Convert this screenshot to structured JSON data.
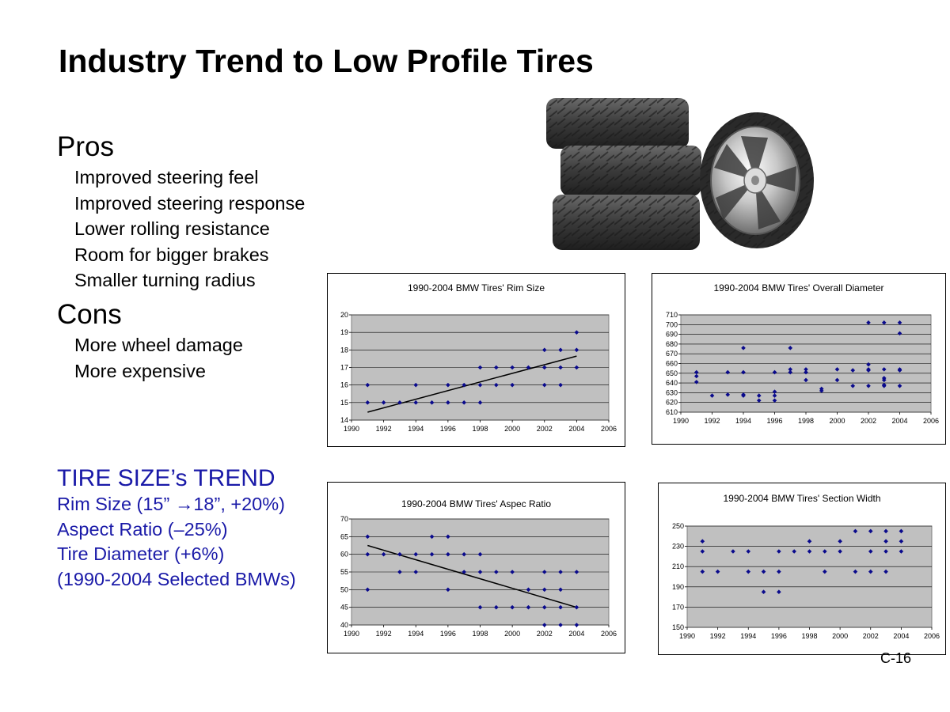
{
  "slide": {
    "title": "Industry Trend to Low Profile Tires",
    "pros_heading": "Pros",
    "pros": [
      "Improved steering feel",
      "Improved steering response",
      "Lower rolling resistance",
      "Room for bigger brakes",
      "Smaller turning radius"
    ],
    "cons_heading": "Cons",
    "cons": [
      "More wheel damage",
      "More expensive"
    ],
    "trend_heading": "TIRE SIZE’s TREND",
    "trend_lines": [
      "Rim Size (15” →18”, +20%)",
      "Aspect Ratio (–25%)",
      "Tire Diameter (+6%)",
      "(1990-2004 Selected BMWs)"
    ],
    "page_number": "C-16"
  },
  "image": {
    "icon": "tires-and-chrome-wheel-photo"
  },
  "colors": {
    "marker": "#0a0a8c",
    "plot_bg": "#c0c0c0",
    "trend_text": "#1a1aa8"
  },
  "chart_data": [
    {
      "type": "scatter",
      "title": "1990-2004 BMW Tires' Rim Size",
      "xlim": [
        1990,
        2006
      ],
      "ylim": [
        14,
        20
      ],
      "xticks": [
        1990,
        1992,
        1994,
        1996,
        1998,
        2000,
        2002,
        2004,
        2006
      ],
      "yticks": [
        14,
        15,
        16,
        17,
        18,
        19,
        20
      ],
      "grid": true,
      "legend": "none",
      "points": [
        [
          1991,
          16
        ],
        [
          1991,
          15
        ],
        [
          1992,
          15
        ],
        [
          1993,
          15
        ],
        [
          1994,
          16
        ],
        [
          1994,
          15
        ],
        [
          1995,
          15
        ],
        [
          1996,
          16
        ],
        [
          1996,
          15
        ],
        [
          1997,
          16
        ],
        [
          1997,
          15
        ],
        [
          1998,
          17
        ],
        [
          1998,
          16
        ],
        [
          1998,
          15
        ],
        [
          1999,
          17
        ],
        [
          1999,
          16
        ],
        [
          2000,
          17
        ],
        [
          2000,
          16
        ],
        [
          2001,
          17
        ],
        [
          2002,
          18
        ],
        [
          2002,
          17
        ],
        [
          2002,
          16
        ],
        [
          2003,
          18
        ],
        [
          2003,
          17
        ],
        [
          2003,
          16
        ],
        [
          2004,
          19
        ],
        [
          2004,
          18
        ],
        [
          2004,
          17
        ]
      ],
      "trendline": [
        [
          1991,
          14.45
        ],
        [
          2004,
          17.65
        ]
      ]
    },
    {
      "type": "scatter",
      "title": "1990-2004 BMW Tires' Overall Diameter",
      "xlim": [
        1990,
        2006
      ],
      "ylim": [
        610,
        710
      ],
      "xticks": [
        1990,
        1992,
        1994,
        1996,
        1998,
        2000,
        2002,
        2004,
        2006
      ],
      "yticks": [
        610,
        620,
        630,
        640,
        650,
        660,
        670,
        680,
        690,
        700,
        710
      ],
      "grid": true,
      "legend": "none",
      "points": [
        [
          1991,
          651
        ],
        [
          1991,
          647
        ],
        [
          1991,
          641
        ],
        [
          1992,
          627
        ],
        [
          1993,
          651
        ],
        [
          1993,
          628
        ],
        [
          1994,
          676
        ],
        [
          1994,
          651
        ],
        [
          1994,
          628
        ],
        [
          1994,
          627
        ],
        [
          1995,
          627
        ],
        [
          1995,
          622
        ],
        [
          1996,
          651
        ],
        [
          1996,
          631
        ],
        [
          1996,
          627
        ],
        [
          1996,
          622
        ],
        [
          1997,
          676
        ],
        [
          1997,
          654
        ],
        [
          1997,
          651
        ],
        [
          1998,
          654
        ],
        [
          1998,
          651
        ],
        [
          1998,
          643
        ],
        [
          1999,
          634
        ],
        [
          1999,
          632
        ],
        [
          2000,
          654
        ],
        [
          2000,
          643
        ],
        [
          2001,
          653
        ],
        [
          2001,
          637
        ],
        [
          2002,
          702
        ],
        [
          2002,
          659
        ],
        [
          2002,
          654
        ],
        [
          2002,
          653
        ],
        [
          2002,
          637
        ],
        [
          2003,
          702
        ],
        [
          2003,
          654
        ],
        [
          2003,
          645
        ],
        [
          2003,
          643
        ],
        [
          2003,
          638
        ],
        [
          2003,
          637
        ],
        [
          2004,
          702
        ],
        [
          2004,
          691
        ],
        [
          2004,
          654
        ],
        [
          2004,
          653
        ],
        [
          2004,
          637
        ]
      ]
    },
    {
      "type": "scatter",
      "title": "1990-2004 BMW Tires' Aspec Ratio",
      "xlim": [
        1990,
        2006
      ],
      "ylim": [
        40,
        70
      ],
      "xticks": [
        1990,
        1992,
        1994,
        1996,
        1998,
        2000,
        2002,
        2004,
        2006
      ],
      "yticks": [
        40,
        45,
        50,
        55,
        60,
        65,
        70
      ],
      "grid": true,
      "legend": "none",
      "points": [
        [
          1991,
          65
        ],
        [
          1991,
          60
        ],
        [
          1991,
          50
        ],
        [
          1992,
          60
        ],
        [
          1993,
          60
        ],
        [
          1993,
          55
        ],
        [
          1994,
          60
        ],
        [
          1994,
          55
        ],
        [
          1995,
          65
        ],
        [
          1995,
          60
        ],
        [
          1996,
          65
        ],
        [
          1996,
          60
        ],
        [
          1996,
          50
        ],
        [
          1997,
          60
        ],
        [
          1997,
          55
        ],
        [
          1998,
          60
        ],
        [
          1998,
          55
        ],
        [
          1998,
          45
        ],
        [
          1999,
          55
        ],
        [
          1999,
          45
        ],
        [
          2000,
          55
        ],
        [
          2000,
          45
        ],
        [
          2001,
          50
        ],
        [
          2001,
          45
        ],
        [
          2002,
          55
        ],
        [
          2002,
          50
        ],
        [
          2002,
          45
        ],
        [
          2002,
          40
        ],
        [
          2003,
          55
        ],
        [
          2003,
          50
        ],
        [
          2003,
          45
        ],
        [
          2003,
          40
        ],
        [
          2004,
          55
        ],
        [
          2004,
          45
        ],
        [
          2004,
          40
        ]
      ],
      "trendline": [
        [
          1991,
          62.5
        ],
        [
          2004,
          45
        ]
      ]
    },
    {
      "type": "scatter",
      "title": "1990-2004 BMW Tires' Section Width",
      "xlim": [
        1990,
        2006
      ],
      "ylim": [
        150,
        250
      ],
      "xticks": [
        1990,
        1992,
        1994,
        1996,
        1998,
        2000,
        2002,
        2004,
        2006
      ],
      "yticks": [
        150,
        170,
        190,
        210,
        230,
        250
      ],
      "grid": true,
      "legend": "none",
      "points": [
        [
          1991,
          235
        ],
        [
          1991,
          225
        ],
        [
          1991,
          205
        ],
        [
          1992,
          205
        ],
        [
          1993,
          225
        ],
        [
          1994,
          225
        ],
        [
          1994,
          205
        ],
        [
          1995,
          205
        ],
        [
          1995,
          185
        ],
        [
          1996,
          225
        ],
        [
          1996,
          205
        ],
        [
          1996,
          185
        ],
        [
          1997,
          225
        ],
        [
          1998,
          235
        ],
        [
          1998,
          225
        ],
        [
          1999,
          225
        ],
        [
          1999,
          205
        ],
        [
          2000,
          235
        ],
        [
          2000,
          225
        ],
        [
          2001,
          245
        ],
        [
          2001,
          205
        ],
        [
          2002,
          245
        ],
        [
          2002,
          225
        ],
        [
          2002,
          205
        ],
        [
          2003,
          245
        ],
        [
          2003,
          235
        ],
        [
          2003,
          225
        ],
        [
          2003,
          205
        ],
        [
          2004,
          245
        ],
        [
          2004,
          235
        ],
        [
          2004,
          225
        ]
      ]
    }
  ]
}
